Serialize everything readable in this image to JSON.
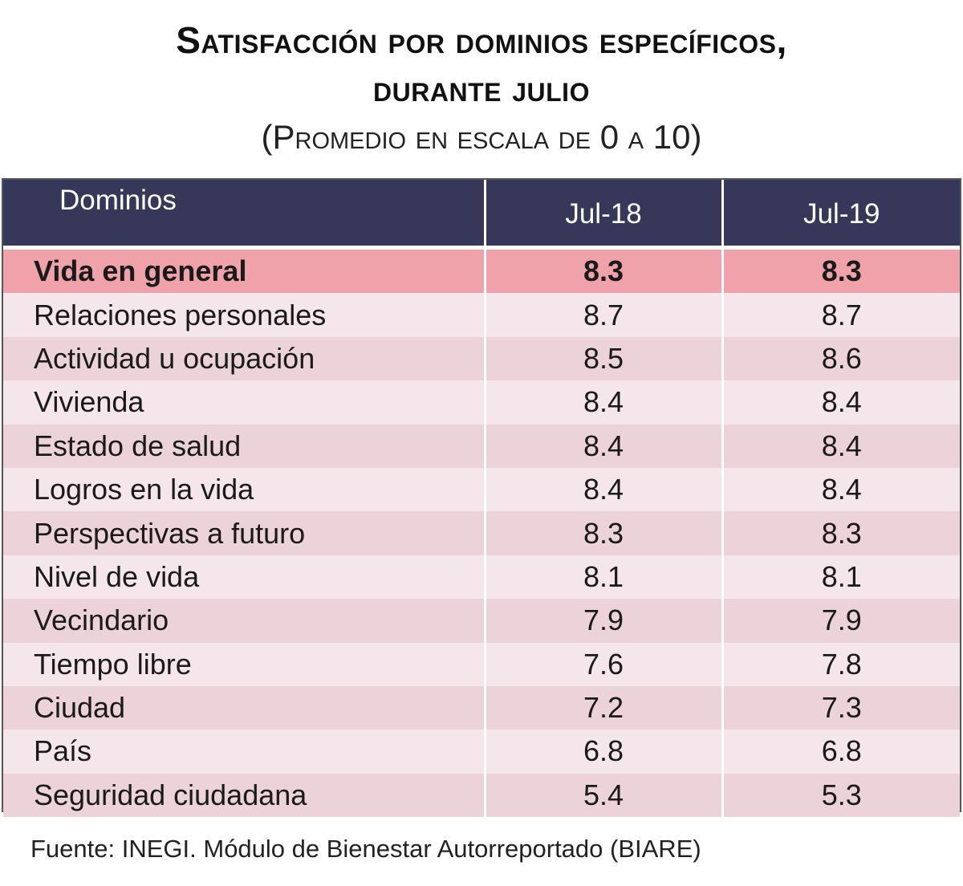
{
  "title_line1": "Satisfacción por dominios específicos,",
  "title_line2": "durante julio",
  "subtitle": "(Promedio en escala de 0 a 10)",
  "headers": [
    "Dominios",
    "Jul-18",
    "Jul-19"
  ],
  "source": "Fuente: INEGI. Módulo de Bienestar Autorreportado (BIARE)",
  "colors": {
    "header_bg": "#37375a",
    "highlight_row": "#f0a2ab",
    "row_light": "#f4e6ea",
    "row_dark": "#ecd3da"
  },
  "chart_data": {
    "type": "table",
    "columns": [
      "Dominios",
      "Jul-18",
      "Jul-19"
    ],
    "rows": [
      {
        "label": "Vida en general",
        "values": [
          "8.3",
          "8.3"
        ]
      },
      {
        "label": "Relaciones personales",
        "values": [
          "8.7",
          "8.7"
        ]
      },
      {
        "label": "Actividad u ocupación",
        "values": [
          "8.5",
          "8.6"
        ]
      },
      {
        "label": "Vivienda",
        "values": [
          "8.4",
          "8.4"
        ]
      },
      {
        "label": "Estado de salud",
        "values": [
          "8.4",
          "8.4"
        ]
      },
      {
        "label": "Logros en la vida",
        "values": [
          "8.4",
          "8.4"
        ]
      },
      {
        "label": "Perspectivas a futuro",
        "values": [
          "8.3",
          "8.3"
        ]
      },
      {
        "label": "Nivel de vida",
        "values": [
          "8.1",
          "8.1"
        ]
      },
      {
        "label": "Vecindario",
        "values": [
          "7.9",
          "7.9"
        ]
      },
      {
        "label": "Tiempo libre",
        "values": [
          "7.6",
          "7.8"
        ]
      },
      {
        "label": "Ciudad",
        "values": [
          "7.2",
          "7.3"
        ]
      },
      {
        "label": "País",
        "values": [
          "6.8",
          "6.8"
        ]
      },
      {
        "label": "Seguridad ciudadana",
        "values": [
          "5.4",
          "5.3"
        ]
      }
    ]
  }
}
